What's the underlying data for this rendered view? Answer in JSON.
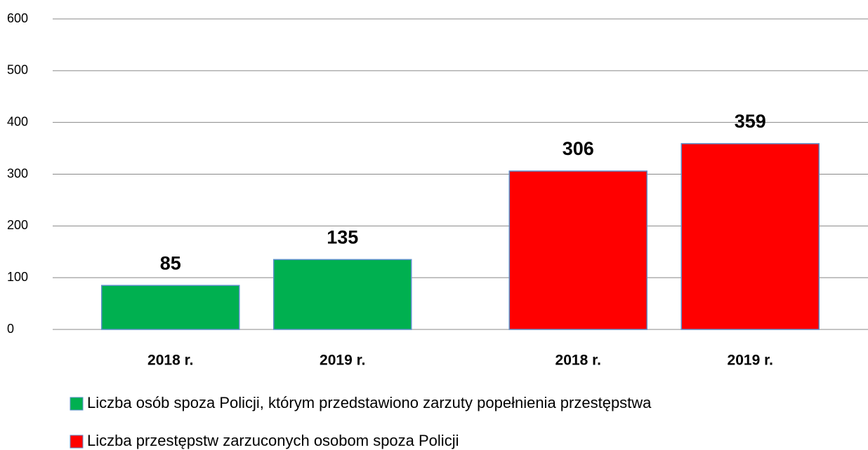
{
  "chart_data": {
    "type": "bar",
    "categories": [
      "2018 r.",
      "2019 r.",
      "2018 r.",
      "2019 r."
    ],
    "series": [
      {
        "name": "Liczba osób spoza Policji, którym przedstawiono zarzuty popełnienia przestępstwa",
        "color": "#00b050",
        "values": [
          85,
          135,
          null,
          null
        ]
      },
      {
        "name": "Liczba przestępstw zarzuconych osobom spoza Policji",
        "color": "#ff0000",
        "values": [
          null,
          null,
          306,
          359
        ]
      }
    ],
    "ylim": [
      0,
      600
    ],
    "yticks": [
      0,
      100,
      200,
      300,
      400,
      500,
      600
    ],
    "grid": true,
    "legend": "bottom"
  }
}
